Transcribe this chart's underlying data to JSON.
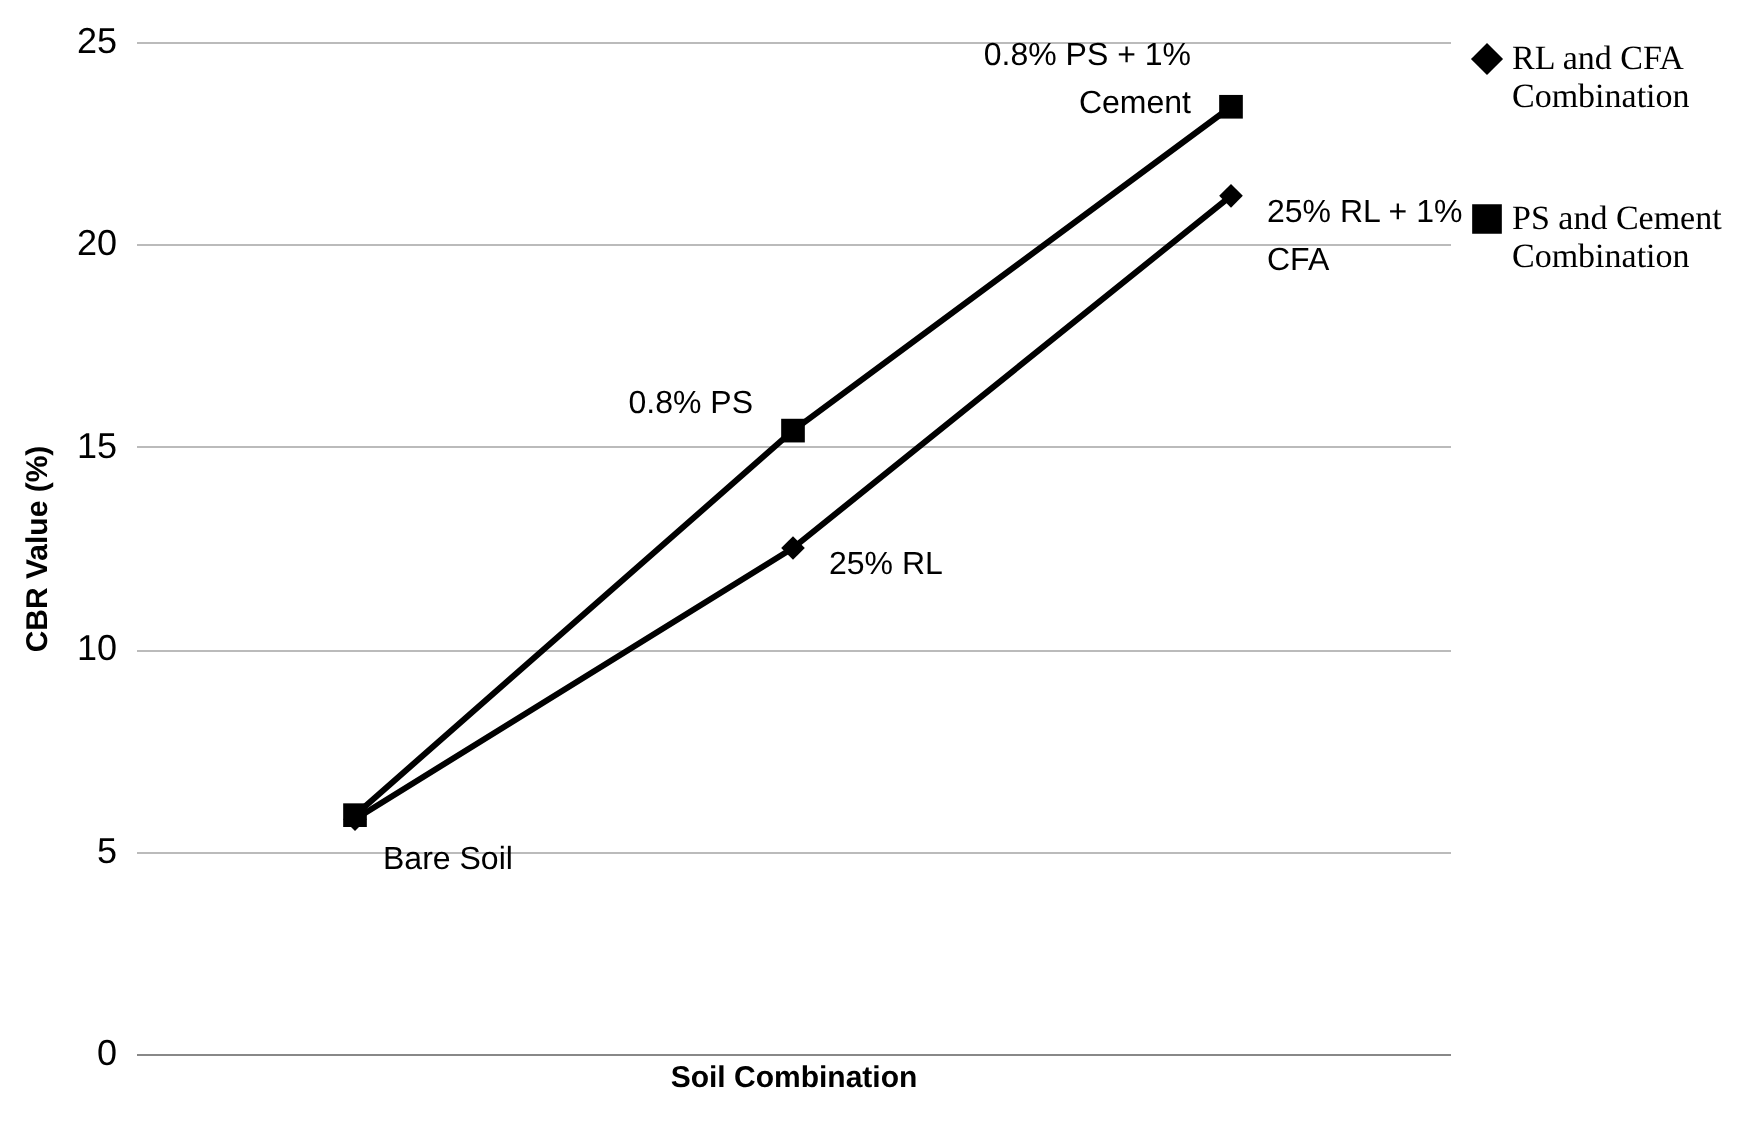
{
  "chart_data": {
    "type": "line",
    "xlabel": "Soil Combination",
    "ylabel": "CBR Value (%)",
    "categories": [
      null,
      null,
      null
    ],
    "series": [
      {
        "name": "RL and CFA Combination",
        "color": "#000000",
        "marker": "diamond",
        "values": [
          5.8,
          12.5,
          21.2
        ]
      },
      {
        "name": "PS and Cement Combination",
        "color": "#000000",
        "marker": "square",
        "values": [
          5.9,
          15.4,
          23.4
        ]
      }
    ],
    "ylim": [
      0,
      25
    ],
    "yticks": [
      0,
      5,
      10,
      15,
      20,
      25
    ],
    "grid": "y",
    "legend": "right",
    "tick_labels": "y",
    "annotations": [
      "Bare Soil",
      "25% RL",
      "25% RL + 1% CFA",
      "0.8% PS",
      "0.8% PS + 1% Cement"
    ]
  }
}
